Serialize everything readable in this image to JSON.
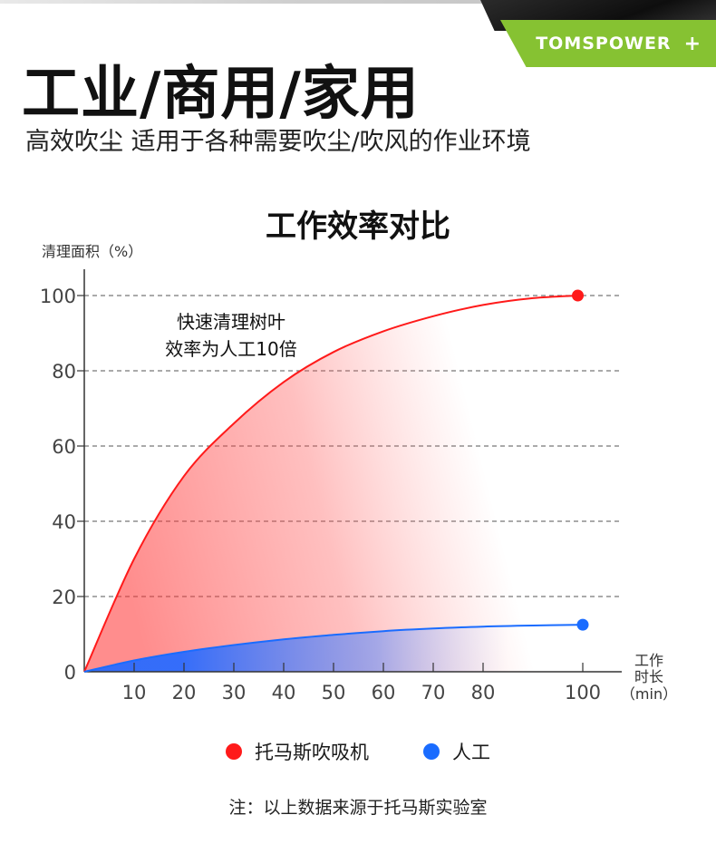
{
  "header": {
    "brand": "TOMSPOWER",
    "brand_symbol": "+",
    "headline": "工业/商用/家用",
    "subline": "高效吹尘 适用于各种需要吹尘/吹风的作业环境"
  },
  "footer": {
    "note": "注：以上数据来源于托马斯实验室"
  },
  "colors": {
    "brand_green": "#86c232",
    "series_red": "#ff1a1a",
    "series_blue": "#1a6cff"
  },
  "chart_data": {
    "type": "area",
    "title": "工作效率对比",
    "ylabel": "清理面积（%）",
    "xlabel_lines": [
      "工作",
      "时长",
      "（min）"
    ],
    "xlim": [
      0,
      100
    ],
    "ylim": [
      0,
      100
    ],
    "x_ticks": [
      10,
      20,
      30,
      40,
      50,
      60,
      70,
      80,
      100
    ],
    "y_ticks": [
      0,
      20,
      40,
      60,
      80,
      100
    ],
    "grid": "horizontal-dashed",
    "legend_position": "bottom",
    "annotation_lines": [
      "快速清理树叶",
      "效率为人工10倍"
    ],
    "series": [
      {
        "name": "托马斯吹吸机",
        "color": "#ff1a1a",
        "x": [
          0,
          10,
          20,
          30,
          40,
          50,
          60,
          70,
          80,
          90,
          99
        ],
        "y": [
          0,
          30,
          52,
          66,
          77,
          85,
          90.5,
          94.5,
          97.5,
          99.3,
          100
        ]
      },
      {
        "name": "人工",
        "color": "#1a6cff",
        "x": [
          0,
          10,
          20,
          30,
          40,
          50,
          60,
          70,
          80,
          90,
          100
        ],
        "y": [
          0,
          3,
          5.3,
          7.1,
          8.6,
          9.8,
          10.8,
          11.5,
          12.0,
          12.3,
          12.5
        ]
      }
    ]
  }
}
